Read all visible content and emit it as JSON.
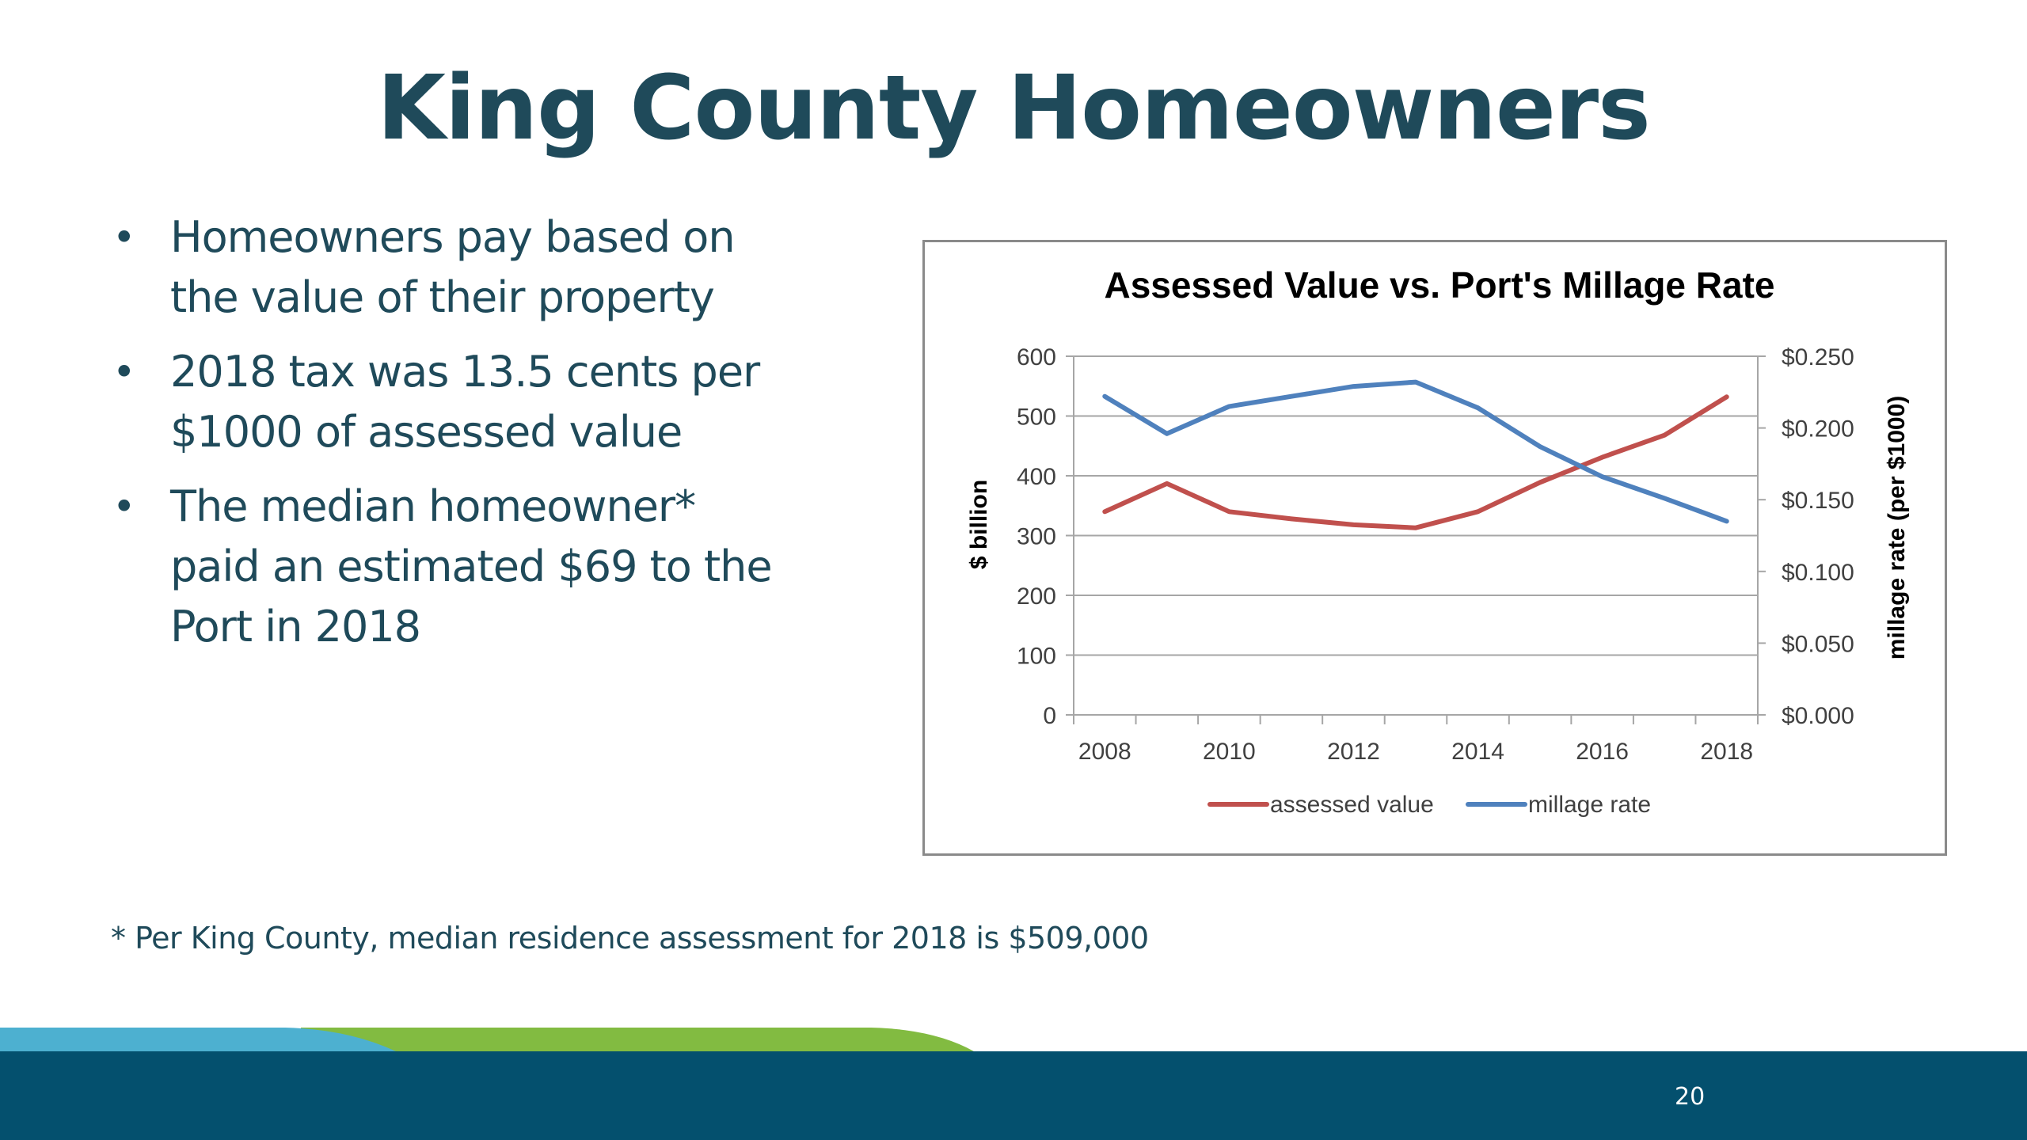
{
  "slide": {
    "title": "King County Homeowners",
    "bullets": [
      {
        "lines": [
          "Homeowners pay based on",
          "the value of their property"
        ]
      },
      {
        "lines": [
          "2018 tax was 13.5 cents per",
          "$1000 of assessed value"
        ]
      },
      {
        "lines": [
          "The median homeowner*",
          "paid an estimated $69 to the",
          "Port in 2018"
        ]
      }
    ],
    "bullet_glyph": "•",
    "footnote": "* Per King County, median residence assessment for 2018 is $509,000",
    "page_number": "20"
  },
  "colors": {
    "text": "#1f4a5a",
    "footer_navy": "#04506e",
    "stripe_blue": "#4db0d0",
    "stripe_green": "#82bb41",
    "series_assessed": "#c0504d",
    "series_millage": "#4f81bd",
    "gridline": "#a6a6a6"
  },
  "chart_data": {
    "type": "line",
    "title": "Assessed Value vs. Port's Millage Rate",
    "xlabel": "",
    "ylabel": "$ billion",
    "y2label": "millage rate (per $1000)",
    "x": [
      2008,
      2009,
      2010,
      2011,
      2012,
      2013,
      2014,
      2015,
      2016,
      2017,
      2018
    ],
    "x_tick_labels": [
      "2008",
      "2010",
      "2012",
      "2014",
      "2016",
      "2018"
    ],
    "y_ticks": [
      "0",
      "100",
      "200",
      "300",
      "400",
      "500",
      "600"
    ],
    "y2_ticks": [
      "$0.000",
      "$0.050",
      "$0.100",
      "$0.150",
      "$0.200",
      "$0.250"
    ],
    "ylim": [
      0,
      600
    ],
    "y2lim": [
      0,
      0.25
    ],
    "grid": true,
    "legend_position": "bottom",
    "series": [
      {
        "name": "assessed value",
        "axis": "left",
        "color": "#c0504d",
        "values": [
          340,
          387,
          340,
          328,
          318,
          313,
          340,
          389,
          431,
          468,
          532
        ]
      },
      {
        "name": "millage rate",
        "axis": "right",
        "color": "#4f81bd",
        "values": [
          0.222,
          0.196,
          0.215,
          0.222,
          0.229,
          0.232,
          0.214,
          0.187,
          0.166,
          0.151,
          0.135
        ]
      }
    ]
  }
}
